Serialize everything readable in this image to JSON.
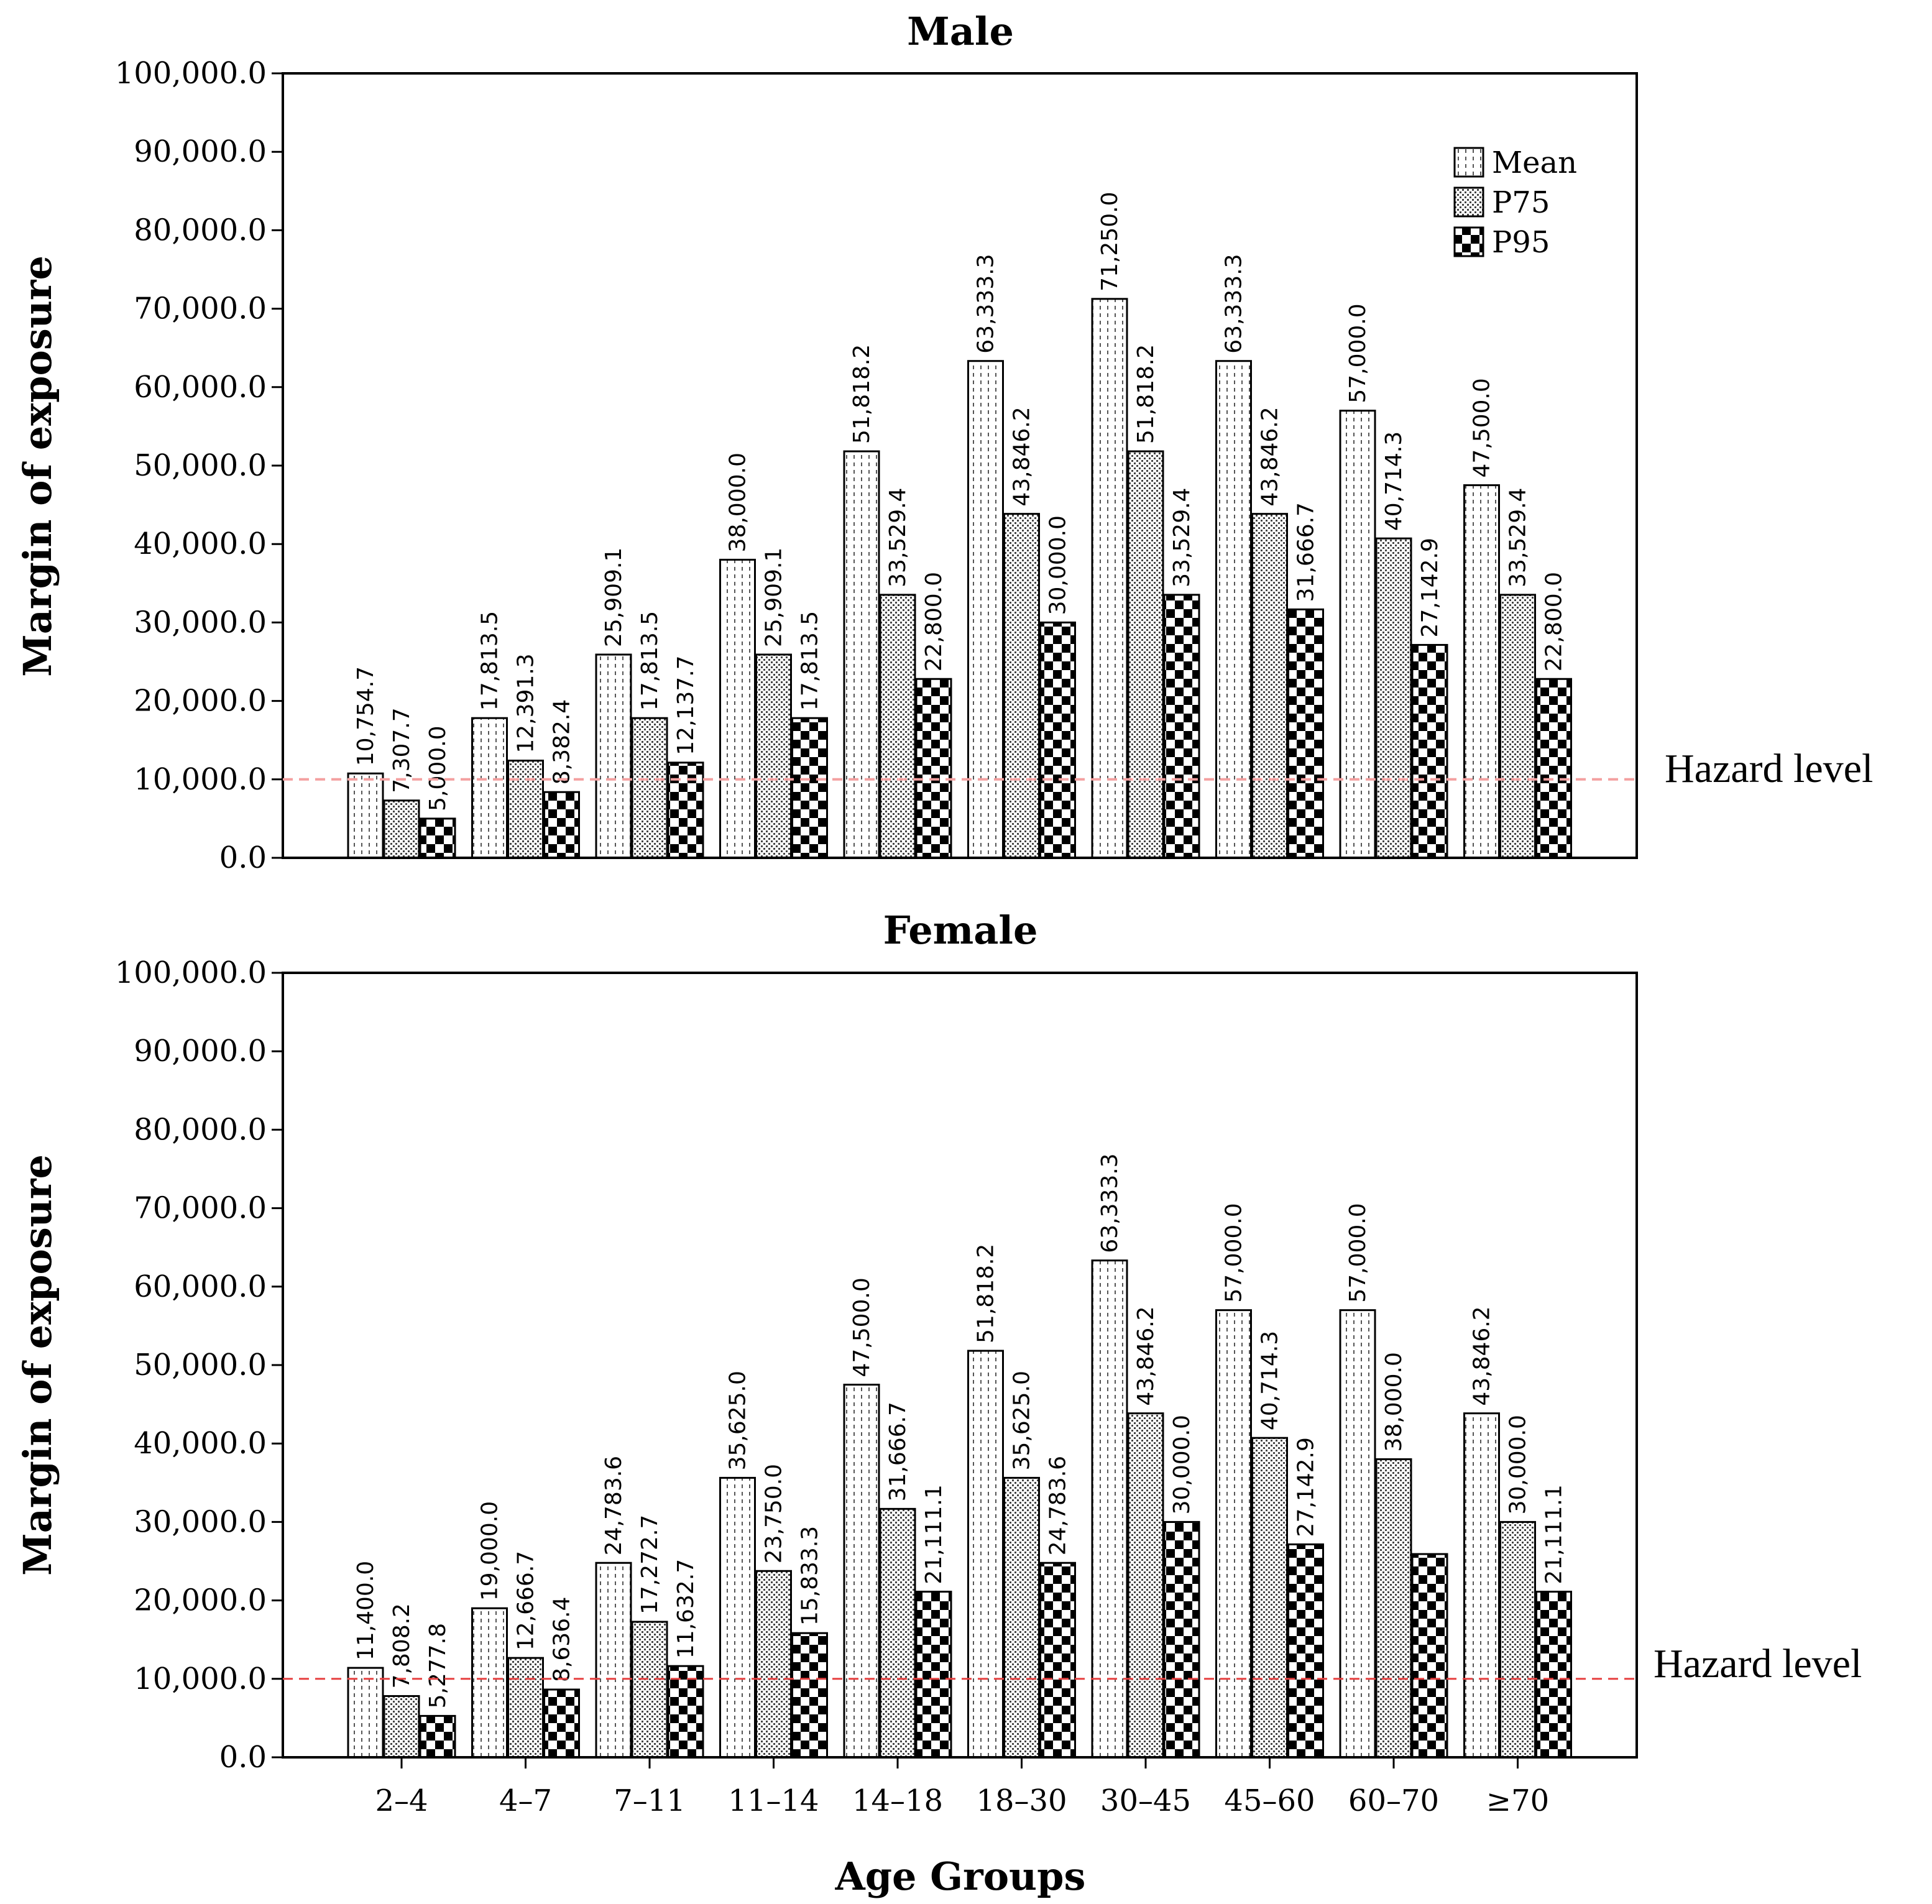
{
  "chart_data": [
    {
      "type": "bar",
      "title": "Male",
      "ylabel": "Margin of exposure",
      "xlabel": "",
      "ylim": [
        0,
        100000
      ],
      "yticks": [
        "0.0",
        "10,000.0",
        "20,000.0",
        "30,000.0",
        "40,000.0",
        "50,000.0",
        "60,000.0",
        "70,000.0",
        "80,000.0",
        "90,000.0",
        "100,000.0"
      ],
      "categories": [
        "2–4",
        "4–7",
        "7–11",
        "11–14",
        "14–18",
        "18–30",
        "30–45",
        "45–60",
        "60–70",
        "≥70"
      ],
      "series": [
        {
          "name": "Mean",
          "pattern": "mean",
          "values": [
            10754.7,
            17813.5,
            25909.1,
            38000.0,
            51818.2,
            63333.3,
            71250.0,
            63333.3,
            57000.0,
            47500.0
          ],
          "labels": [
            "10,754.7",
            "17,813.5",
            "25,909.1",
            "38,000.0",
            "51,818.2",
            "63,333.3",
            "71,250.0",
            "63,333.3",
            "57,000.0",
            "47,500.0"
          ]
        },
        {
          "name": "P75",
          "pattern": "p75",
          "values": [
            7307.7,
            12391.3,
            17813.5,
            25909.1,
            33529.4,
            43846.2,
            51818.2,
            43846.2,
            40714.3,
            33529.4
          ],
          "labels": [
            "7,307.7",
            "12,391.3",
            "17,813.5",
            "25,909.1",
            "33,529.4",
            "43,846.2",
            "51,818.2",
            "43,846.2",
            "40,714.3",
            "33,529.4"
          ]
        },
        {
          "name": "P95",
          "pattern": "p95",
          "values": [
            5000.0,
            8382.4,
            12137.7,
            17813.5,
            22800.0,
            30000.0,
            33529.4,
            31666.7,
            27142.9,
            22800.0
          ],
          "labels": [
            "5,000.0",
            "8,382.4",
            "12,137.7",
            "17,813.5",
            "22,800.0",
            "30,000.0",
            "33,529.4",
            "31,666.7",
            "27,142.9",
            "22,800.0"
          ]
        }
      ],
      "hazard_level": {
        "value": 10000,
        "label": "Hazard level",
        "color": "#f4a0a0"
      },
      "legend": {
        "position": "top-right",
        "items": [
          "Mean",
          "P75",
          "P95"
        ]
      }
    },
    {
      "type": "bar",
      "title": "Female",
      "ylabel": "Margin of exposure",
      "xlabel": "Age Groups",
      "ylim": [
        0,
        100000
      ],
      "yticks": [
        "0.0",
        "10,000.0",
        "20,000.0",
        "30,000.0",
        "40,000.0",
        "50,000.0",
        "60,000.0",
        "70,000.0",
        "80,000.0",
        "90,000.0",
        "100,000.0"
      ],
      "categories": [
        "2–4",
        "4–7",
        "7–11",
        "11–14",
        "14–18",
        "18–30",
        "30–45",
        "45–60",
        "60–70",
        "≥70"
      ],
      "series": [
        {
          "name": "Mean",
          "pattern": "mean",
          "values": [
            11400.0,
            19000.0,
            24783.6,
            35625.0,
            47500.0,
            51818.2,
            63333.3,
            57000.0,
            57000.0,
            43846.2
          ],
          "labels": [
            "11,400.0",
            "19,000.0",
            "24,783.6",
            "35,625.0",
            "47,500.0",
            "51,818.2",
            "63,333.3",
            "57,000.0",
            "57,000.0",
            "43,846.2"
          ]
        },
        {
          "name": "P75",
          "pattern": "p75",
          "values": [
            7808.2,
            12666.7,
            17272.7,
            23750.0,
            31666.7,
            35625.0,
            43846.2,
            40714.3,
            38000.0,
            30000.0
          ],
          "labels": [
            "7,808.2",
            "12,666.7",
            "17,272.7",
            "23,750.0",
            "31,666.7",
            "35,625.0",
            "43,846.2",
            "40,714.3",
            "38,000.0",
            "30,000.0"
          ]
        },
        {
          "name": "P95",
          "pattern": "p95",
          "values": [
            5277.8,
            8636.4,
            11632.7,
            15833.3,
            21111.1,
            24783.6,
            30000.0,
            27142.9,
            25909.1,
            21111.1
          ],
          "labels": [
            "5,277.8",
            "8,636.4",
            "11,632.7",
            "15,833.3",
            "21,111.1",
            "24,783.6",
            "30,000.0",
            "27,142.9",
            "",
            "21,111.1"
          ]
        }
      ],
      "hazard_level": {
        "value": 10000,
        "label": "Hazard level",
        "color": "#e64040"
      }
    }
  ]
}
